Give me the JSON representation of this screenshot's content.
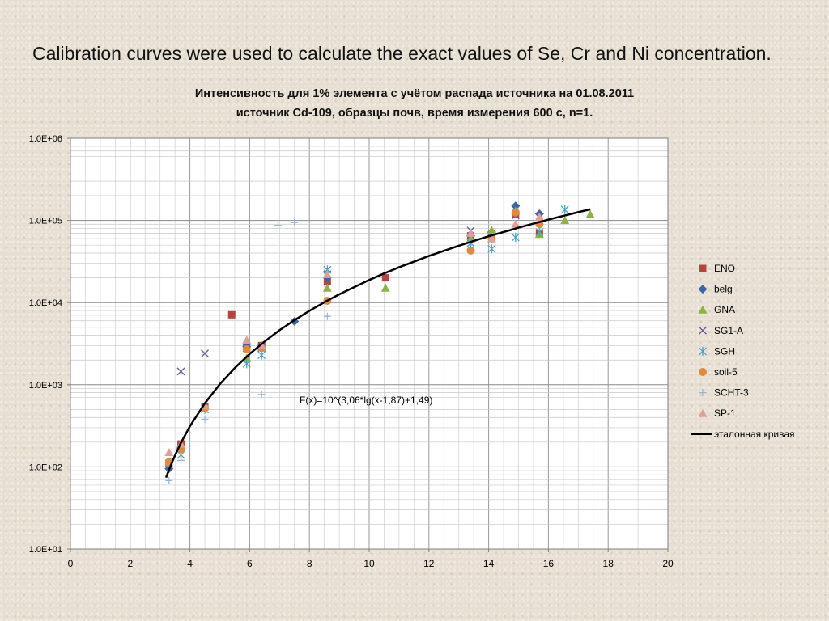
{
  "slide": {
    "title": "Calibration curves were used to calculate the exact values of Se, Cr and Ni concentration."
  },
  "chart_data": {
    "type": "scatter",
    "title_line1": "Интенсивность для 1% элемента с учётом распада источника на 01.08.2011",
    "title_line2": "источник Cd-109, образцы почв, время измерения 600 с, n=1.",
    "xlabel": "",
    "ylabel": "",
    "xlim": [
      0,
      20
    ],
    "xticks": [
      0,
      2,
      4,
      6,
      8,
      10,
      12,
      14,
      16,
      18,
      20
    ],
    "y_scale": "log",
    "ylim": [
      10,
      1000000
    ],
    "ytick_values": [
      10,
      100,
      1000,
      10000,
      100000,
      1000000
    ],
    "ytick_labels": [
      "1.0E+01",
      "1.0E+02",
      "1.0E+03",
      "1.0E+04",
      "1.0E+05",
      "1.0E+06"
    ],
    "grid": true,
    "legend_position": "right",
    "annotation": "F(x)=10^(3,06*lg(x-1,87)+1,49)",
    "series": [
      {
        "name": "ENO",
        "marker": "square",
        "color": "#b5443f",
        "points": [
          [
            3.3,
            110
          ],
          [
            3.7,
            190
          ],
          [
            4.5,
            540
          ],
          [
            5.4,
            7100
          ],
          [
            5.9,
            3000
          ],
          [
            6.4,
            3000
          ],
          [
            8.6,
            18000
          ],
          [
            10.55,
            20000
          ],
          [
            13.4,
            65000
          ],
          [
            14.1,
            65000
          ],
          [
            14.9,
            120000
          ],
          [
            15.7,
            70000
          ]
        ]
      },
      {
        "name": "belg",
        "marker": "diamond",
        "color": "#3f63a8",
        "points": [
          [
            3.3,
            95
          ],
          [
            3.7,
            170
          ],
          [
            4.5,
            520
          ],
          [
            5.9,
            2900
          ],
          [
            6.4,
            2900
          ],
          [
            7.5,
            5900
          ],
          [
            8.6,
            20000
          ],
          [
            13.4,
            65000
          ],
          [
            14.1,
            72000
          ],
          [
            14.9,
            150000
          ],
          [
            15.7,
            120000
          ]
        ]
      },
      {
        "name": "GNA",
        "marker": "triangle",
        "color": "#8db443",
        "points": [
          [
            3.3,
            110
          ],
          [
            3.7,
            180
          ],
          [
            4.5,
            550
          ],
          [
            5.9,
            2100
          ],
          [
            6.4,
            2900
          ],
          [
            8.6,
            15000
          ],
          [
            10.55,
            15000
          ],
          [
            13.4,
            60000
          ],
          [
            14.1,
            76000
          ],
          [
            14.9,
            130000
          ],
          [
            15.7,
            68000
          ],
          [
            16.55,
            100000
          ],
          [
            17.4,
            118000
          ]
        ]
      },
      {
        "name": "SG1-A",
        "marker": "x",
        "color": "#6f5a9a",
        "points": [
          [
            3.3,
            110
          ],
          [
            3.7,
            1450
          ],
          [
            4.5,
            2400
          ],
          [
            5.9,
            2800
          ],
          [
            6.4,
            2800
          ],
          [
            8.6,
            22000
          ],
          [
            13.4,
            75000
          ],
          [
            14.1,
            60000
          ],
          [
            14.9,
            115000
          ],
          [
            15.7,
            110000
          ]
        ]
      },
      {
        "name": "SGH",
        "marker": "star",
        "color": "#4aa3c4",
        "points": [
          [
            3.3,
            110
          ],
          [
            3.7,
            140
          ],
          [
            4.5,
            500
          ],
          [
            5.9,
            1800
          ],
          [
            6.4,
            2300
          ],
          [
            8.6,
            25000
          ],
          [
            13.4,
            53000
          ],
          [
            14.1,
            45000
          ],
          [
            14.9,
            62000
          ],
          [
            15.7,
            72000
          ],
          [
            16.55,
            135000
          ]
        ]
      },
      {
        "name": "soil-5",
        "marker": "circle",
        "color": "#e08a3c",
        "points": [
          [
            3.3,
            115
          ],
          [
            3.7,
            165
          ],
          [
            4.5,
            520
          ],
          [
            5.9,
            2700
          ],
          [
            6.4,
            2800
          ],
          [
            8.6,
            10500
          ],
          [
            13.4,
            43000
          ],
          [
            14.1,
            60000
          ],
          [
            14.9,
            125000
          ],
          [
            15.7,
            90000
          ]
        ]
      },
      {
        "name": "SCHT-3",
        "marker": "plus",
        "color": "#95b3d7",
        "points": [
          [
            3.3,
            68
          ],
          [
            3.7,
            120
          ],
          [
            4.5,
            380
          ],
          [
            6.4,
            760
          ],
          [
            6.95,
            87000
          ],
          [
            7.5,
            94000
          ],
          [
            8.6,
            6800
          ],
          [
            15.7,
            105000
          ]
        ]
      },
      {
        "name": "SP-1",
        "marker": "triangle",
        "color": "#e0a09a",
        "points": [
          [
            3.3,
            150
          ],
          [
            3.7,
            190
          ],
          [
            4.5,
            560
          ],
          [
            5.9,
            3500
          ],
          [
            6.4,
            3000
          ],
          [
            8.6,
            22000
          ],
          [
            13.4,
            70000
          ],
          [
            14.1,
            60000
          ],
          [
            14.9,
            90000
          ],
          [
            15.7,
            110000
          ]
        ]
      }
    ],
    "curve": {
      "name": "эталонная кривая",
      "color": "#000000",
      "x": [
        3.2,
        3.3,
        3.4,
        3.5,
        3.7,
        4.0,
        4.5,
        5.0,
        5.5,
        6.0,
        6.5,
        7.0,
        7.5,
        8.0,
        8.6,
        9.0,
        10.0,
        10.5,
        11.0,
        12.0,
        13.0,
        13.5,
        14.0,
        15.0,
        16.0,
        17.0,
        17.4
      ]
    }
  }
}
